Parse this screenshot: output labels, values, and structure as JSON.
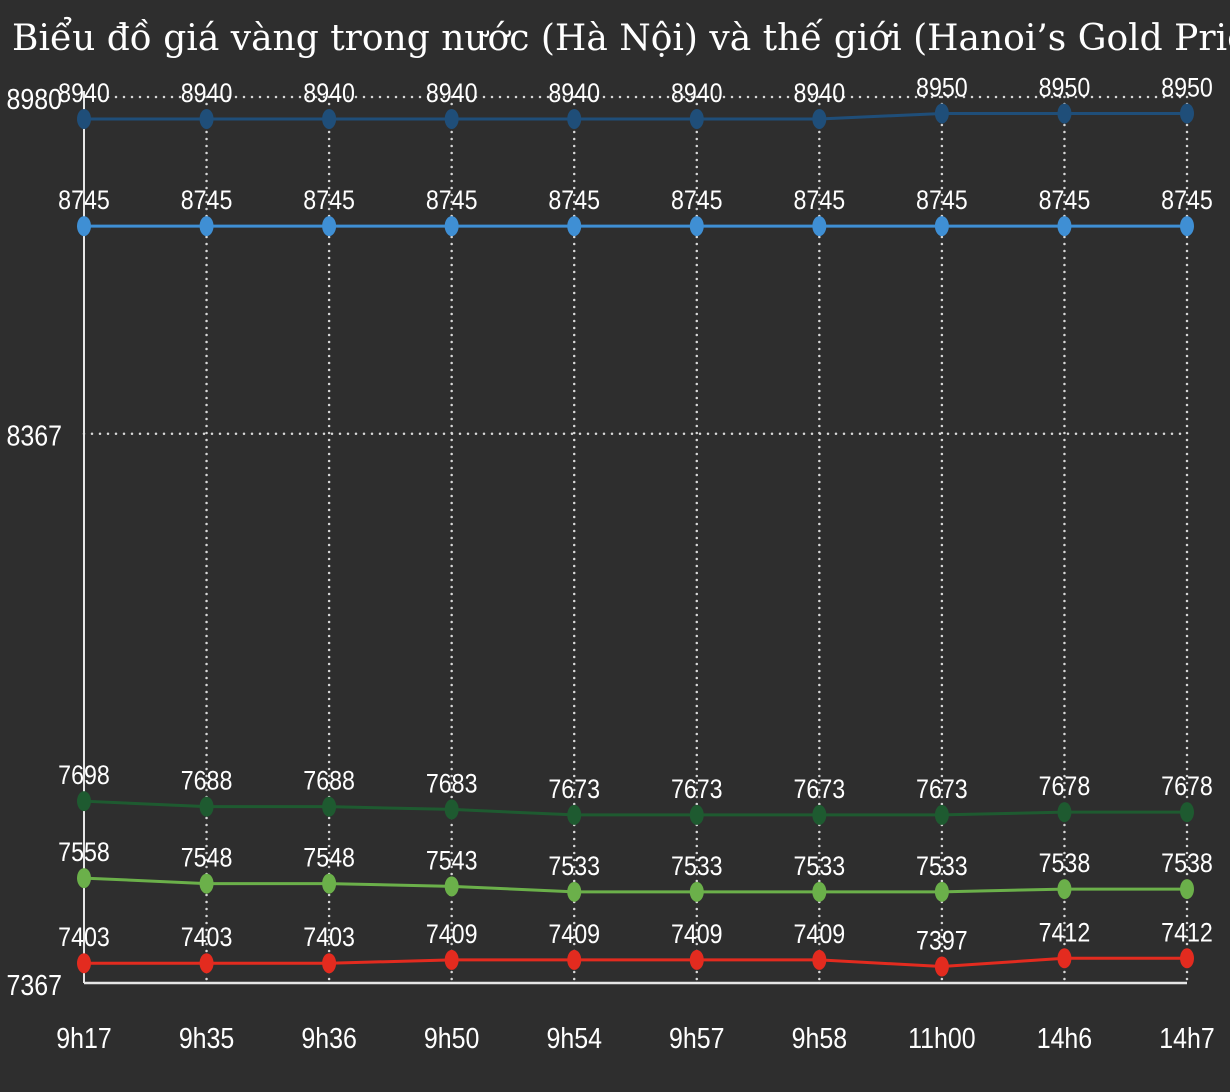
{
  "chart_data": {
    "type": "line",
    "title": "Biểu đồ giá vàng trong nước (Hà Nội) và thế giới (Hanoi’s Gold Price)",
    "xlabel": "",
    "ylabel": "",
    "categories": [
      "9h17",
      "9h35",
      "9h36",
      "9h50",
      "9h54",
      "9h57",
      "9h58",
      "11h00",
      "14h6",
      "14h7"
    ],
    "ylim": [
      7367,
      8980
    ],
    "yticks": [
      7367,
      8367,
      8980
    ],
    "grid": true,
    "legend": "none",
    "series": [
      {
        "color": "#1f4e79",
        "values": [
          8940,
          8940,
          8940,
          8940,
          8940,
          8940,
          8940,
          8950,
          8950,
          8950
        ]
      },
      {
        "color": "#3f8fd4",
        "values": [
          8745,
          8745,
          8745,
          8745,
          8745,
          8745,
          8745,
          8745,
          8745,
          8745
        ]
      },
      {
        "color": "#1e5a30",
        "values": [
          7698,
          7688,
          7688,
          7683,
          7673,
          7673,
          7673,
          7673,
          7678,
          7678
        ]
      },
      {
        "color": "#6bb04a",
        "values": [
          7558,
          7548,
          7548,
          7543,
          7533,
          7533,
          7533,
          7533,
          7538,
          7538
        ]
      },
      {
        "color": "#e32b1f",
        "values": [
          7403,
          7403,
          7403,
          7409,
          7409,
          7409,
          7409,
          7397,
          7412,
          7412
        ]
      }
    ]
  }
}
